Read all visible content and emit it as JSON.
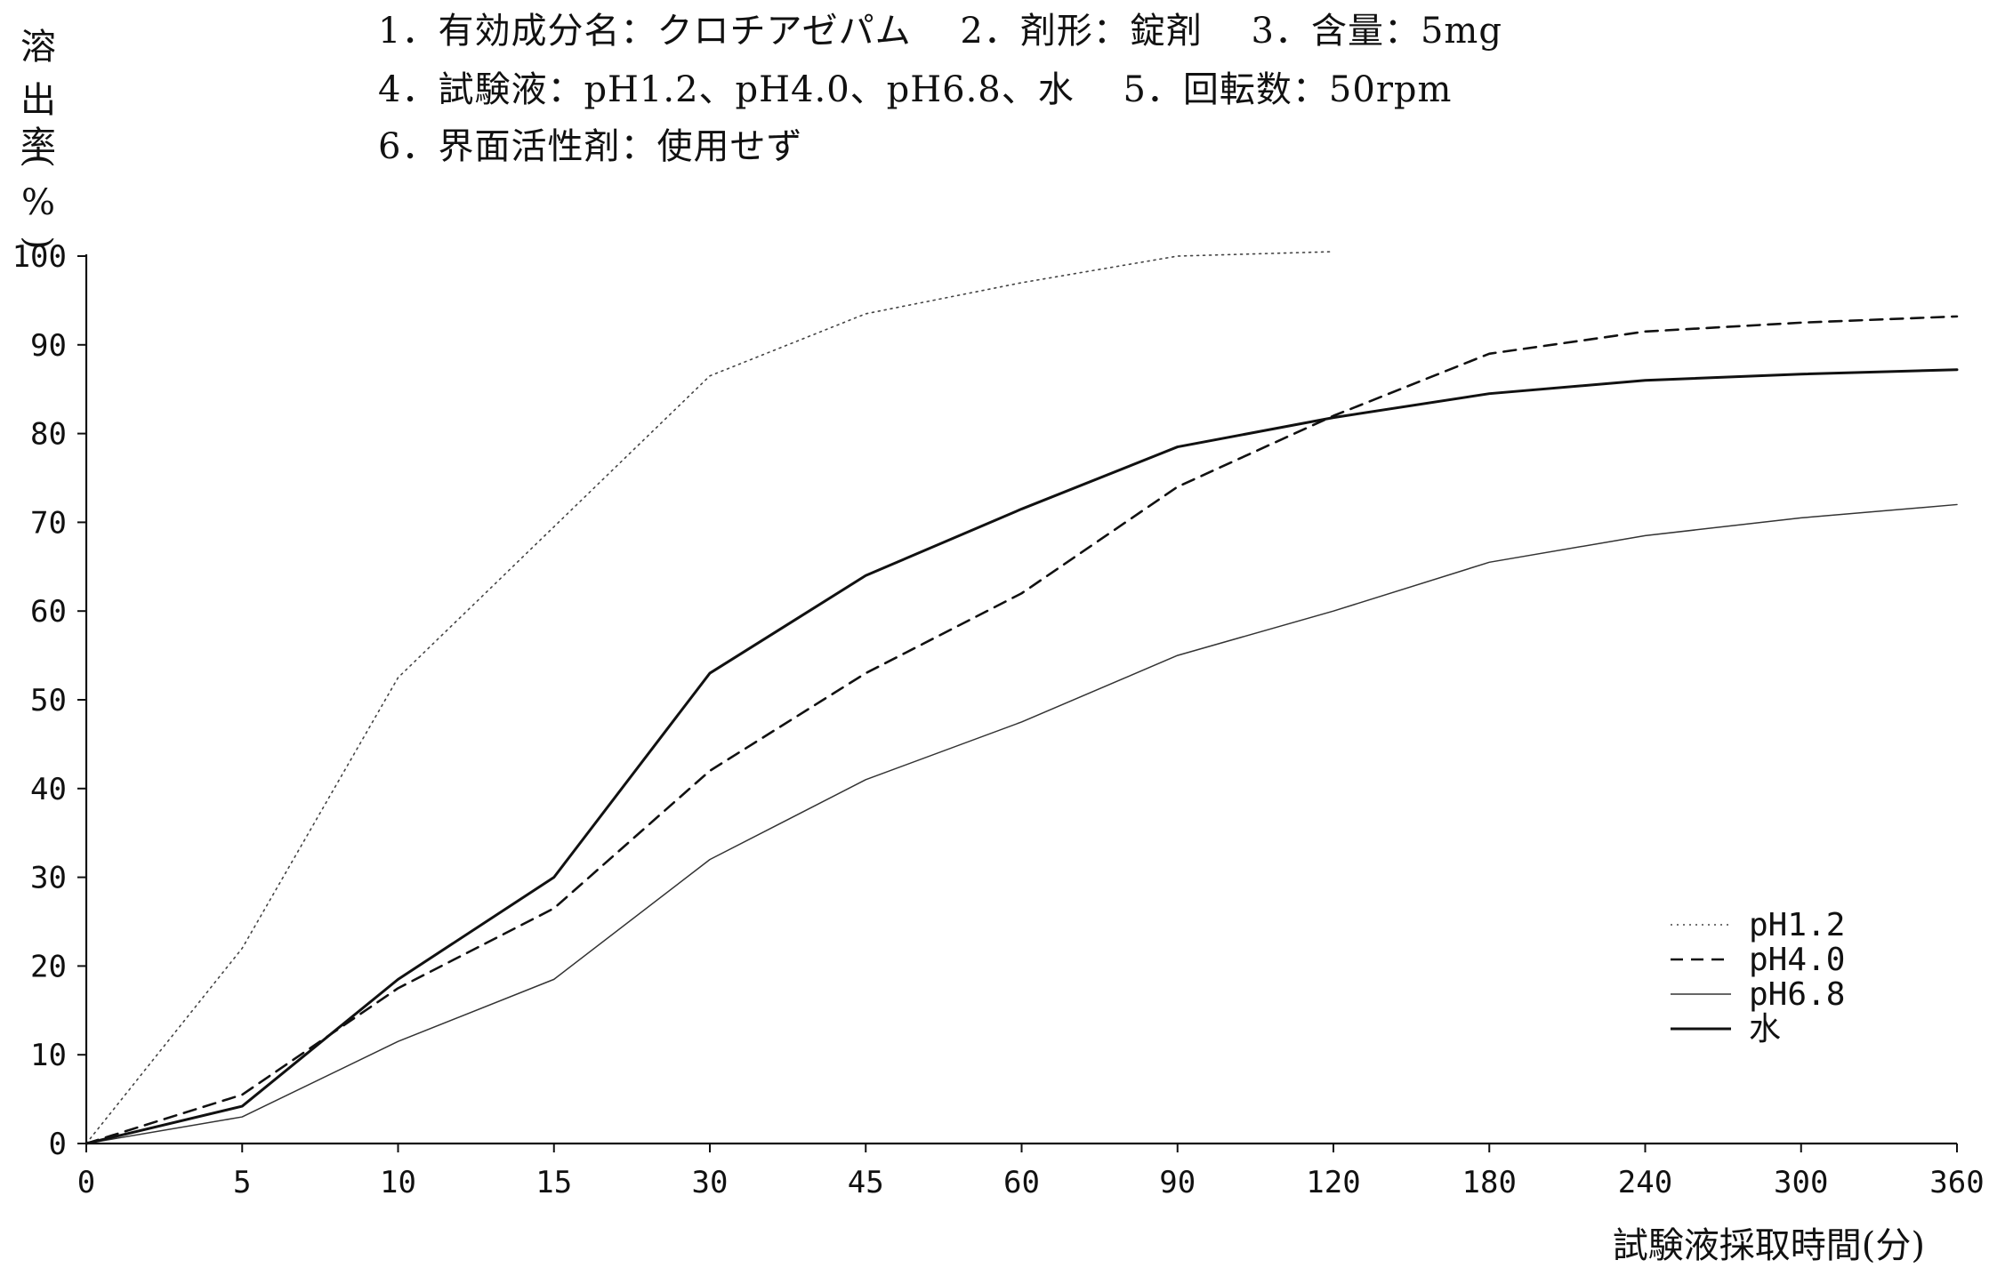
{
  "header_lines": [
    "1．有効成分名：クロチアゼパム　 2．剤形：錠剤　 3．含量：5mg",
    "4．試験液：pH1.2、pH4.0、pH6.8、水　 5．回転数：50rpm",
    "6．界面活性剤：使用せず"
  ],
  "chart_data": {
    "type": "line",
    "title": "",
    "xlabel": "試験液採取時間(分)",
    "ylabel": "溶出率(%)",
    "ylim": [
      0,
      100
    ],
    "yticks": [
      "0",
      "10",
      "20",
      "30",
      "40",
      "50",
      "60",
      "70",
      "80",
      "90",
      "100"
    ],
    "x_categories": [
      "0",
      "5",
      "10",
      "15",
      "30",
      "45",
      "60",
      "90",
      "120",
      "180",
      "240",
      "300",
      "360"
    ],
    "legend_position": "bottom-right",
    "series": [
      {
        "name": "pH1.2",
        "style": "dotted",
        "color": "#444444",
        "values": [
          0,
          22,
          52.5,
          69.5,
          86.5,
          93.5,
          97,
          100,
          100.5,
          null,
          null,
          null,
          null
        ]
      },
      {
        "name": "pH4.0",
        "style": "dashed",
        "color": "#111111",
        "values": [
          0,
          5.5,
          17.5,
          26.5,
          42,
          53,
          62,
          74,
          82,
          89,
          91.5,
          92.5,
          93.2
        ]
      },
      {
        "name": "pH6.8",
        "style": "thin",
        "color": "#333333",
        "values": [
          0,
          3,
          11.5,
          18.5,
          32,
          41,
          47.5,
          55,
          60,
          65.5,
          68.5,
          70.5,
          72
        ]
      },
      {
        "name": "水",
        "style": "solid",
        "color": "#111111",
        "values": [
          0,
          4.2,
          18.5,
          30,
          53,
          64,
          71.5,
          78.5,
          81.8,
          84.5,
          86,
          86.7,
          87.2
        ]
      }
    ]
  }
}
